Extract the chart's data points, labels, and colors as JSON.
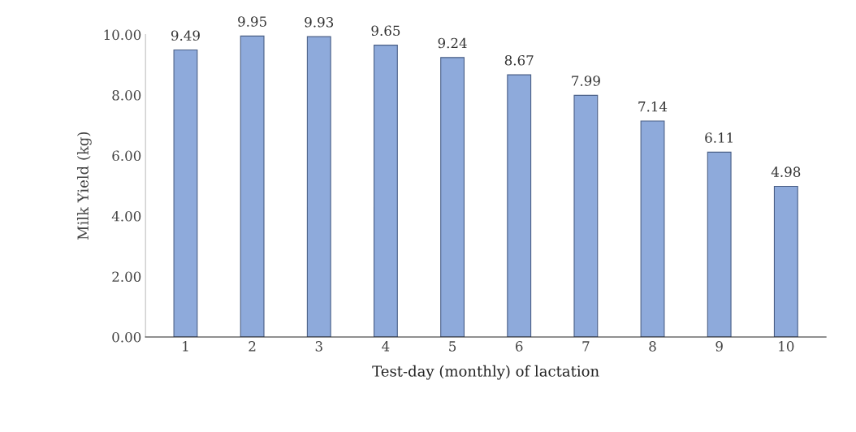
{
  "chart_data": {
    "type": "bar",
    "xlabel": "Test-day (monthly) of lactation",
    "ylabel": "Milk Yield (kg)",
    "categories": [
      "1",
      "2",
      "3",
      "4",
      "5",
      "6",
      "7",
      "8",
      "9",
      "10"
    ],
    "values": [
      9.49,
      9.95,
      9.93,
      9.65,
      9.24,
      8.67,
      7.99,
      7.14,
      6.11,
      4.98
    ],
    "color": "#8eaadb",
    "ylim": [
      0,
      10
    ],
    "yticks": [
      {
        "value": 0,
        "label": "0.00"
      },
      {
        "value": 2,
        "label": "2.00"
      },
      {
        "value": 4,
        "label": "4.00"
      },
      {
        "value": 6,
        "label": "6.00"
      },
      {
        "value": 8,
        "label": "8.00"
      },
      {
        "value": 10,
        "label": "10.00"
      }
    ],
    "data_labels": true,
    "grid": false,
    "legend": false
  }
}
